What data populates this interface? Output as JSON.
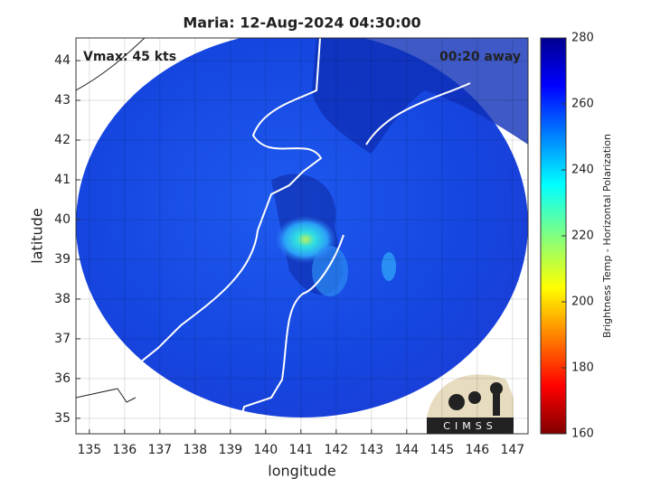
{
  "title": "Maria: 12-Aug-2024 04:30:00",
  "annotations": {
    "vmax": "Vmax: 45 kts",
    "away": "00:20 away"
  },
  "map": {
    "xlabel": "longitude",
    "ylabel": "latitude",
    "xlim": [
      134.62,
      147.44
    ],
    "ylim": [
      34.61,
      44.57
    ],
    "xticks": [
      135,
      136,
      137,
      138,
      139,
      140,
      141,
      142,
      143,
      144,
      145,
      146,
      147
    ],
    "yticks": [
      35,
      36,
      37,
      38,
      39,
      40,
      41,
      42,
      43,
      44
    ]
  },
  "colorbar": {
    "label": "Brightness Temp - Horizontal Polarization",
    "lim": [
      160,
      280
    ],
    "ticks": [
      160,
      180,
      200,
      220,
      240,
      260,
      280
    ]
  },
  "logo": "CIMSS"
}
